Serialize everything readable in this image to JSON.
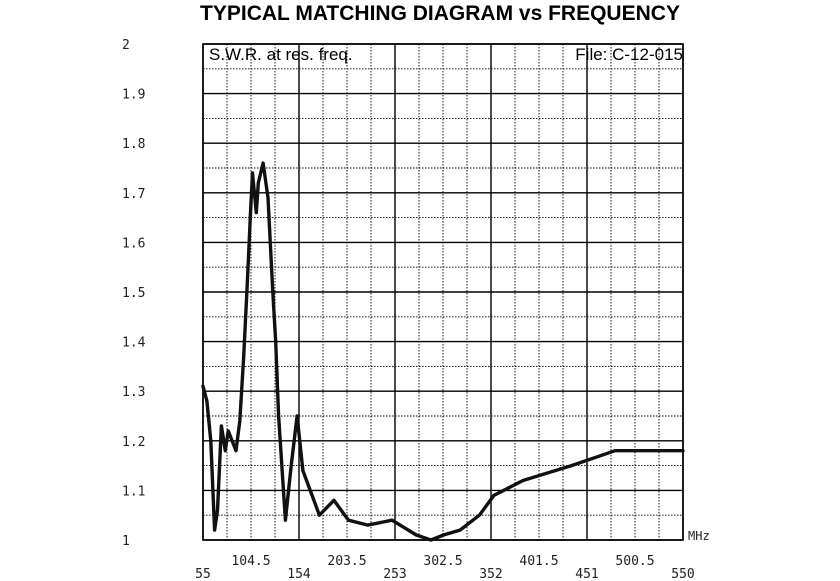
{
  "chart_data": {
    "type": "line",
    "title": "TYPICAL MATCHING DIAGRAM vs FREQUENCY",
    "subtitle": "S.W.R. at res. freq.",
    "file_label": "File:  C-12-015",
    "xlabel": "",
    "ylabel": "",
    "x_unit": "MHz",
    "xlim": [
      55,
      550
    ],
    "ylim": [
      1,
      2
    ],
    "x_ticks_upper": [
      "104.5",
      "203.5",
      "302.5",
      "401.5",
      "500.5"
    ],
    "x_ticks_lower": [
      "55",
      "154",
      "253",
      "352",
      "451",
      "550"
    ],
    "y_ticks": [
      "2",
      "1.9",
      "1.8",
      "1.7",
      "1.6",
      "1.5",
      "1.4",
      "1.3",
      "1.2",
      "1.1",
      "1"
    ],
    "grid": true,
    "series": [
      {
        "x": [
          55,
          59,
          63,
          67,
          70,
          74,
          78,
          81,
          85,
          89,
          93,
          97,
          101,
          104,
          106,
          108,
          110,
          112,
          117,
          122,
          127,
          130,
          133,
          140,
          146,
          152,
          158,
          175,
          190,
          205,
          225,
          250,
          275,
          290,
          303,
          320,
          340,
          355,
          385,
          435,
          480,
          512,
          550
        ],
        "y": [
          1.31,
          1.28,
          1.2,
          1.02,
          1.06,
          1.23,
          1.18,
          1.22,
          1.2,
          1.18,
          1.24,
          1.37,
          1.53,
          1.66,
          1.74,
          1.7,
          1.66,
          1.72,
          1.76,
          1.69,
          1.5,
          1.4,
          1.25,
          1.04,
          1.15,
          1.25,
          1.14,
          1.05,
          1.08,
          1.04,
          1.03,
          1.04,
          1.01,
          1,
          1.01,
          1.02,
          1.05,
          1.09,
          1.12,
          1.15,
          1.18,
          1.18,
          1.18
        ]
      }
    ]
  }
}
